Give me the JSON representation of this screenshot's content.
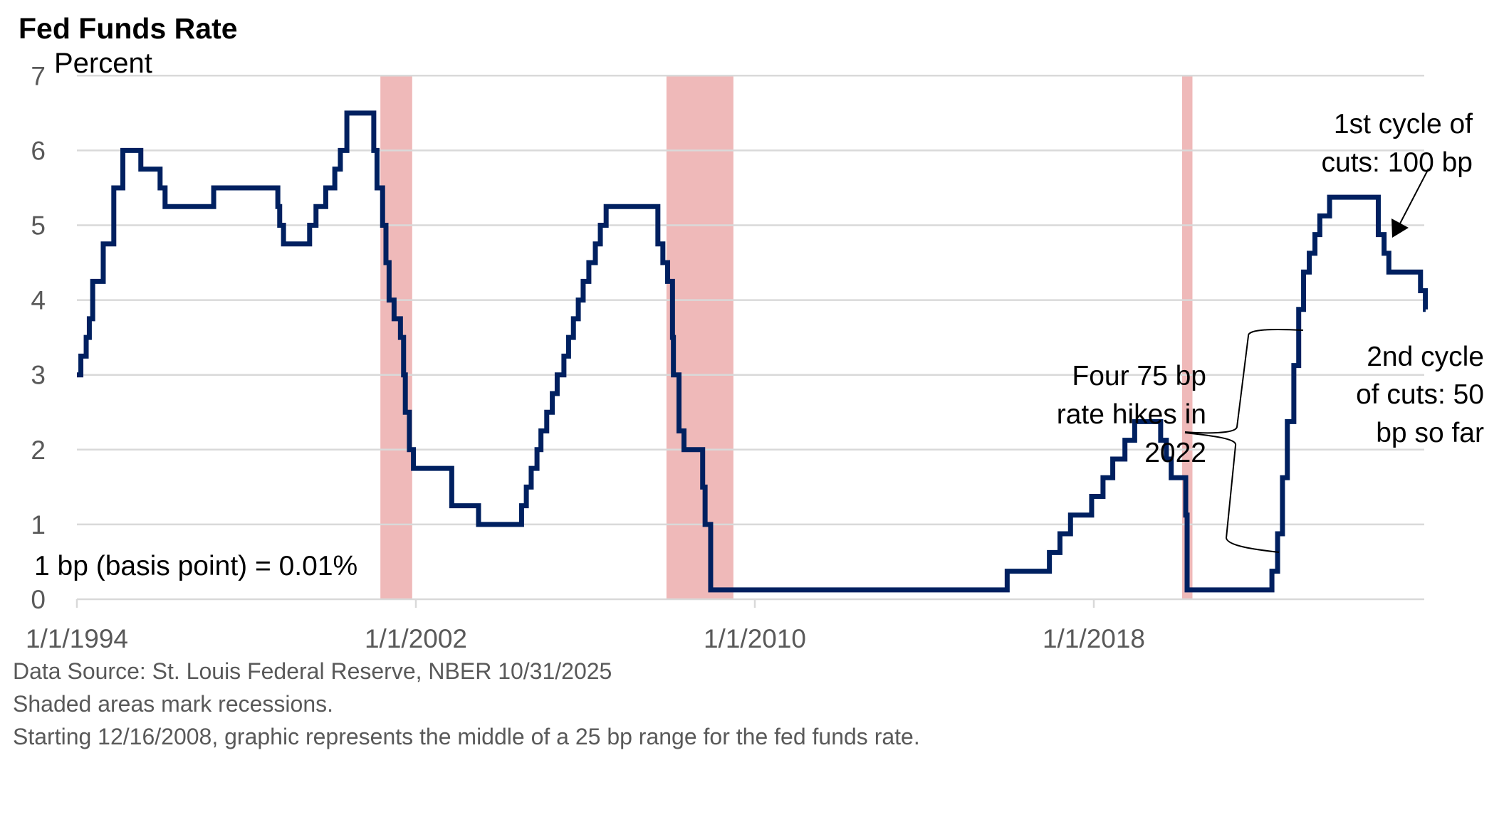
{
  "chart_data": {
    "type": "line",
    "step": true,
    "title": "Fed Funds Rate",
    "ylabel": "Percent",
    "ylim": [
      0,
      7
    ],
    "yticks": [
      0,
      1,
      2,
      3,
      4,
      5,
      6,
      7
    ],
    "xlim": [
      "1994-01-01",
      "2025-10-31"
    ],
    "xticks": [
      "1/1/1994",
      "1/1/2002",
      "1/1/2010",
      "1/1/2018"
    ],
    "grid": true,
    "line_color": "#002060",
    "recession_color": "#efb9b9",
    "recessions": [
      [
        "2001-03-01",
        "2001-11-30"
      ],
      [
        "2007-12-01",
        "2009-06-30"
      ],
      [
        "2020-02-01",
        "2020-04-30"
      ]
    ],
    "series": [
      {
        "x": [
          "1994-01-01",
          "1994-02-04",
          "1994-03-22",
          "1994-04-18",
          "1994-05-17",
          "1994-08-16",
          "1994-11-15",
          "1995-02-01",
          "1995-07-06",
          "1995-12-19",
          "1996-01-31",
          "1997-03-25",
          "1998-09-29",
          "1998-10-15",
          "1998-11-17",
          "1999-06-30",
          "1999-08-24",
          "1999-11-16",
          "2000-02-02",
          "2000-03-21",
          "2000-05-16",
          "2001-01-03",
          "2001-01-31",
          "2001-03-20",
          "2001-04-18",
          "2001-05-15",
          "2001-06-27",
          "2001-08-21",
          "2001-09-17",
          "2001-10-02",
          "2001-11-06",
          "2001-12-11",
          "2002-11-06",
          "2003-06-25",
          "2004-06-30",
          "2004-08-10",
          "2004-09-21",
          "2004-11-10",
          "2004-12-14",
          "2005-02-02",
          "2005-03-22",
          "2005-05-03",
          "2005-06-30",
          "2005-08-09",
          "2005-09-20",
          "2005-11-01",
          "2005-12-13",
          "2006-01-31",
          "2006-03-28",
          "2006-05-10",
          "2006-06-29",
          "2007-09-18",
          "2007-10-31",
          "2007-12-11",
          "2008-01-22",
          "2008-01-30",
          "2008-03-18",
          "2008-04-30",
          "2008-10-08",
          "2008-10-29",
          "2008-12-16",
          "2015-12-16",
          "2016-12-14",
          "2017-03-15",
          "2017-06-14",
          "2017-12-13",
          "2018-03-21",
          "2018-06-13",
          "2018-09-26",
          "2018-12-19",
          "2019-07-31",
          "2019-09-18",
          "2019-10-30",
          "2020-03-03",
          "2020-03-15",
          "2022-03-16",
          "2022-05-04",
          "2022-06-15",
          "2022-07-27",
          "2022-09-21",
          "2022-11-02",
          "2022-12-14",
          "2023-02-01",
          "2023-03-22",
          "2023-05-03",
          "2023-07-26",
          "2024-09-18",
          "2024-11-07",
          "2024-12-18",
          "2025-09-17",
          "2025-10-29",
          "2025-10-31"
        ],
        "y": [
          3.0,
          3.25,
          3.5,
          3.75,
          4.25,
          4.75,
          5.5,
          6.0,
          5.75,
          5.5,
          5.25,
          5.5,
          5.25,
          5.0,
          4.75,
          5.0,
          5.25,
          5.5,
          5.75,
          6.0,
          6.5,
          6.0,
          5.5,
          5.0,
          4.5,
          4.0,
          3.75,
          3.5,
          3.0,
          2.5,
          2.0,
          1.75,
          1.25,
          1.0,
          1.25,
          1.5,
          1.75,
          2.0,
          2.25,
          2.5,
          2.75,
          3.0,
          3.25,
          3.5,
          3.75,
          4.0,
          4.25,
          4.5,
          4.75,
          5.0,
          5.25,
          4.75,
          4.5,
          4.25,
          3.5,
          3.0,
          2.25,
          2.0,
          1.5,
          1.0,
          0.125,
          0.375,
          0.625,
          0.875,
          1.125,
          1.375,
          1.625,
          1.875,
          2.125,
          2.375,
          2.125,
          1.875,
          1.625,
          1.125,
          0.125,
          0.375,
          0.875,
          1.625,
          2.375,
          3.125,
          3.875,
          4.375,
          4.625,
          4.875,
          5.125,
          5.375,
          4.875,
          4.625,
          4.375,
          4.125,
          3.875,
          3.875
        ]
      }
    ],
    "annotations": {
      "basis_point": "1 bp (basis point) = 0.01%",
      "hikes": [
        "Four 75 bp",
        "rate hikes in",
        "2022"
      ],
      "first_cuts": [
        "1st cycle of",
        "cuts: 100 bp"
      ],
      "second_cuts": [
        "2nd cycle",
        "of cuts: 50",
        "bp so far"
      ]
    }
  },
  "footer": [
    "Data Source: St. Louis Federal Reserve, NBER 10/31/2025",
    "Shaded areas mark recessions.",
    "Starting 12/16/2008, graphic represents the middle of a 25 bp range for the fed funds rate."
  ]
}
